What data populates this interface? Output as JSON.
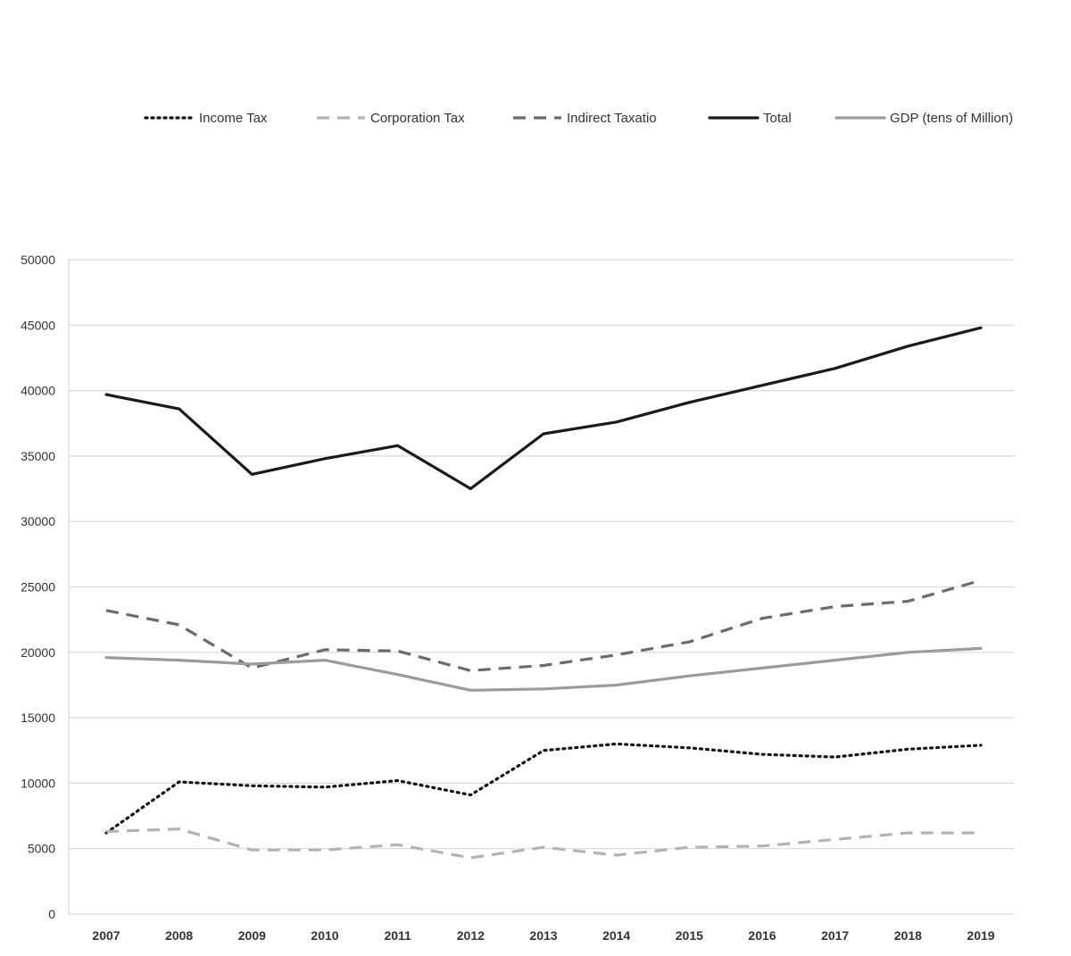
{
  "chart_data": {
    "type": "line",
    "title": "",
    "xlabel": "",
    "ylabel": "",
    "x": [
      "2007",
      "2008",
      "2009",
      "2010",
      "2011",
      "2012",
      "2013",
      "2014",
      "2015",
      "2016",
      "2017",
      "2018",
      "2019"
    ],
    "ylim": [
      0,
      50000
    ],
    "yticks": [
      "0",
      "5000",
      "10000",
      "15000",
      "20000",
      "25000",
      "30000",
      "35000",
      "40000",
      "45000",
      "50000"
    ],
    "grid": "horizontal",
    "legend_position": "top",
    "series": [
      {
        "name": "Income Tax",
        "style": "dotted",
        "color": "#111111",
        "values": [
          6200,
          10100,
          9800,
          9700,
          10200,
          9100,
          12500,
          13000,
          12700,
          12200,
          12000,
          12600,
          12900
        ]
      },
      {
        "name": "Corporation Tax",
        "style": "dashed",
        "color": "#b3b3b3",
        "values": [
          6300,
          6500,
          4900,
          4900,
          5300,
          4300,
          5100,
          4500,
          5100,
          5200,
          5700,
          6200,
          6200
        ]
      },
      {
        "name": "Indirect Taxatio",
        "style": "dashed",
        "color": "#6b6b6b",
        "values": [
          23200,
          22100,
          18800,
          20200,
          20100,
          18600,
          19000,
          19800,
          20800,
          22600,
          23500,
          23900,
          25500
        ]
      },
      {
        "name": "Total",
        "style": "solid",
        "color": "#1a1a1a",
        "values": [
          39700,
          38600,
          33600,
          34800,
          35800,
          32500,
          36700,
          37600,
          39100,
          40400,
          41700,
          43400,
          44800
        ]
      },
      {
        "name": "GDP (tens of Million)",
        "style": "solid",
        "color": "#9b9b9b",
        "values": [
          19600,
          19400,
          19100,
          19400,
          18300,
          17100,
          17200,
          17500,
          18200,
          18800,
          19400,
          20000,
          20300
        ]
      }
    ]
  }
}
